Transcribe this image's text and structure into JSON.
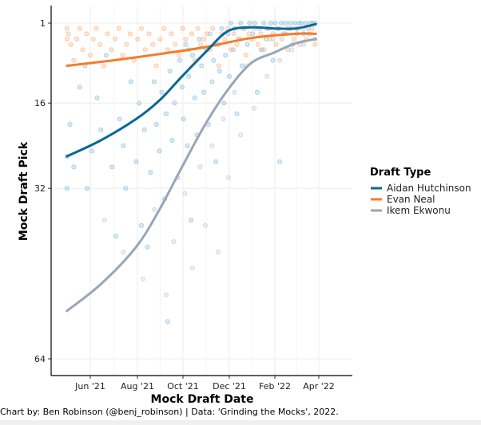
{
  "chart_data": {
    "type": "scatter",
    "xlabel": "Mock Draft Date",
    "ylabel": "Mock Draft Pick",
    "x_ticks": [
      "Jun '21",
      "Aug '21",
      "Oct '21",
      "Dec '21",
      "Feb '22",
      "Apr '22"
    ],
    "y_ticks": [
      1,
      16,
      32,
      64
    ],
    "ylim": [
      1,
      64
    ],
    "y_reversed": true,
    "grid": true,
    "legend": {
      "title": "Draft Type",
      "placement": "right",
      "entries": [
        {
          "name": "Aidan Hutchinson",
          "color": "#0b6799"
        },
        {
          "name": "Evan Neal",
          "color": "#f47c2c"
        },
        {
          "name": "Ikem Ekwonu",
          "color": "#9aa5b8"
        }
      ]
    },
    "series": [
      {
        "name": "Aidan Hutchinson",
        "color": "#0b6799",
        "point_color": "#8ec1de",
        "trend": [
          {
            "x": "2021-05-01",
            "y": 26.0
          },
          {
            "x": "2021-06-15",
            "y": 23.0
          },
          {
            "x": "2021-08-01",
            "y": 19.0
          },
          {
            "x": "2021-09-01",
            "y": 15.5
          },
          {
            "x": "2021-10-01",
            "y": 11.0
          },
          {
            "x": "2021-11-01",
            "y": 6.5
          },
          {
            "x": "2021-12-01",
            "y": 2.5
          },
          {
            "x": "2022-01-01",
            "y": 1.8
          },
          {
            "x": "2022-02-01",
            "y": 2.0
          },
          {
            "x": "2022-03-01",
            "y": 2.0
          },
          {
            "x": "2022-03-28",
            "y": 1.2
          }
        ],
        "points": [
          {
            "x": "2021-05-01",
            "y": 26
          },
          {
            "x": "2021-05-01",
            "y": 32
          },
          {
            "x": "2021-05-05",
            "y": 20
          },
          {
            "x": "2021-05-10",
            "y": 28
          },
          {
            "x": "2021-05-18",
            "y": 13
          },
          {
            "x": "2021-05-25",
            "y": 9
          },
          {
            "x": "2021-05-28",
            "y": 32
          },
          {
            "x": "2021-06-03",
            "y": 25
          },
          {
            "x": "2021-06-10",
            "y": 15
          },
          {
            "x": "2021-06-15",
            "y": 21
          },
          {
            "x": "2021-06-22",
            "y": 7
          },
          {
            "x": "2021-06-30",
            "y": 28
          },
          {
            "x": "2021-07-05",
            "y": 41
          },
          {
            "x": "2021-07-10",
            "y": 19
          },
          {
            "x": "2021-07-15",
            "y": 24
          },
          {
            "x": "2021-07-18",
            "y": 32
          },
          {
            "x": "2021-07-25",
            "y": 12
          },
          {
            "x": "2021-08-01",
            "y": 27
          },
          {
            "x": "2021-08-05",
            "y": 16
          },
          {
            "x": "2021-08-08",
            "y": 39
          },
          {
            "x": "2021-08-12",
            "y": 21
          },
          {
            "x": "2021-08-16",
            "y": 43
          },
          {
            "x": "2021-08-20",
            "y": 29
          },
          {
            "x": "2021-08-25",
            "y": 12
          },
          {
            "x": "2021-08-28",
            "y": 20
          },
          {
            "x": "2021-09-01",
            "y": 25
          },
          {
            "x": "2021-09-04",
            "y": 14
          },
          {
            "x": "2021-09-08",
            "y": 34
          },
          {
            "x": "2021-09-10",
            "y": 18
          },
          {
            "x": "2021-09-12",
            "y": 57
          },
          {
            "x": "2021-09-15",
            "y": 10
          },
          {
            "x": "2021-09-18",
            "y": 23
          },
          {
            "x": "2021-09-21",
            "y": 16
          },
          {
            "x": "2021-09-25",
            "y": 30
          },
          {
            "x": "2021-09-28",
            "y": 8
          },
          {
            "x": "2021-10-01",
            "y": 13
          },
          {
            "x": "2021-10-03",
            "y": 19
          },
          {
            "x": "2021-10-06",
            "y": 5
          },
          {
            "x": "2021-10-08",
            "y": 24
          },
          {
            "x": "2021-10-10",
            "y": 11
          },
          {
            "x": "2021-10-13",
            "y": 38
          },
          {
            "x": "2021-10-15",
            "y": 7
          },
          {
            "x": "2021-10-18",
            "y": 15
          },
          {
            "x": "2021-10-21",
            "y": 22
          },
          {
            "x": "2021-10-24",
            "y": 4
          },
          {
            "x": "2021-10-27",
            "y": 9
          },
          {
            "x": "2021-10-30",
            "y": 14
          },
          {
            "x": "2021-11-02",
            "y": 6
          },
          {
            "x": "2021-11-05",
            "y": 20
          },
          {
            "x": "2021-11-07",
            "y": 3
          },
          {
            "x": "2021-11-10",
            "y": 12
          },
          {
            "x": "2021-11-12",
            "y": 8
          },
          {
            "x": "2021-11-15",
            "y": 27
          },
          {
            "x": "2021-11-18",
            "y": 5
          },
          {
            "x": "2021-11-20",
            "y": 10
          },
          {
            "x": "2021-11-23",
            "y": 2
          },
          {
            "x": "2021-11-26",
            "y": 16
          },
          {
            "x": "2021-11-28",
            "y": 7
          },
          {
            "x": "2021-12-01",
            "y": 3
          },
          {
            "x": "2021-12-03",
            "y": 11
          },
          {
            "x": "2021-12-05",
            "y": 1
          },
          {
            "x": "2021-12-08",
            "y": 6
          },
          {
            "x": "2021-12-10",
            "y": 2
          },
          {
            "x": "2021-12-13",
            "y": 18
          },
          {
            "x": "2021-12-15",
            "y": 4
          },
          {
            "x": "2021-12-18",
            "y": 1
          },
          {
            "x": "2021-12-20",
            "y": 9
          },
          {
            "x": "2021-12-23",
            "y": 2
          },
          {
            "x": "2021-12-27",
            "y": 5
          },
          {
            "x": "2021-12-30",
            "y": 1
          },
          {
            "x": "2022-01-03",
            "y": 3
          },
          {
            "x": "2022-01-06",
            "y": 1
          },
          {
            "x": "2022-01-09",
            "y": 14
          },
          {
            "x": "2022-01-12",
            "y": 2
          },
          {
            "x": "2022-01-15",
            "y": 6
          },
          {
            "x": "2022-01-18",
            "y": 1
          },
          {
            "x": "2022-01-21",
            "y": 4
          },
          {
            "x": "2022-01-24",
            "y": 2
          },
          {
            "x": "2022-01-27",
            "y": 1
          },
          {
            "x": "2022-01-30",
            "y": 8
          },
          {
            "x": "2022-02-02",
            "y": 1
          },
          {
            "x": "2022-02-05",
            "y": 2
          },
          {
            "x": "2022-02-08",
            "y": 27
          },
          {
            "x": "2022-02-10",
            "y": 1
          },
          {
            "x": "2022-02-13",
            "y": 3
          },
          {
            "x": "2022-02-16",
            "y": 1
          },
          {
            "x": "2022-02-19",
            "y": 2
          },
          {
            "x": "2022-02-22",
            "y": 1
          },
          {
            "x": "2022-02-25",
            "y": 5
          },
          {
            "x": "2022-02-28",
            "y": 1
          },
          {
            "x": "2022-03-03",
            "y": 2
          },
          {
            "x": "2022-03-06",
            "y": 1
          },
          {
            "x": "2022-03-09",
            "y": 1
          },
          {
            "x": "2022-03-12",
            "y": 3
          },
          {
            "x": "2022-03-15",
            "y": 1
          },
          {
            "x": "2022-03-18",
            "y": 2
          },
          {
            "x": "2022-03-21",
            "y": 1
          },
          {
            "x": "2022-03-24",
            "y": 1
          },
          {
            "x": "2022-03-27",
            "y": 1
          }
        ]
      },
      {
        "name": "Evan Neal",
        "color": "#f47c2c",
        "point_color": "#f8b98a",
        "trend": [
          {
            "x": "2021-05-01",
            "y": 9.0
          },
          {
            "x": "2021-07-01",
            "y": 8.0
          },
          {
            "x": "2021-09-01",
            "y": 6.8
          },
          {
            "x": "2021-11-01",
            "y": 5.5
          },
          {
            "x": "2022-01-01",
            "y": 3.8
          },
          {
            "x": "2022-03-01",
            "y": 3.0
          },
          {
            "x": "2022-03-28",
            "y": 3.0
          }
        ],
        "points": [
          {
            "x": "2021-05-01",
            "y": 2
          },
          {
            "x": "2021-05-01",
            "y": 4
          },
          {
            "x": "2021-05-03",
            "y": 3
          },
          {
            "x": "2021-05-06",
            "y": 5
          },
          {
            "x": "2021-05-10",
            "y": 8
          },
          {
            "x": "2021-05-14",
            "y": 4
          },
          {
            "x": "2021-05-18",
            "y": 2
          },
          {
            "x": "2021-05-22",
            "y": 6
          },
          {
            "x": "2021-05-27",
            "y": 3
          },
          {
            "x": "2021-06-01",
            "y": 7
          },
          {
            "x": "2021-06-05",
            "y": 4
          },
          {
            "x": "2021-06-09",
            "y": 2
          },
          {
            "x": "2021-06-14",
            "y": 5
          },
          {
            "x": "2021-06-19",
            "y": 9
          },
          {
            "x": "2021-06-24",
            "y": 3
          },
          {
            "x": "2021-06-29",
            "y": 6
          },
          {
            "x": "2021-07-04",
            "y": 4
          },
          {
            "x": "2021-07-09",
            "y": 2
          },
          {
            "x": "2021-07-14",
            "y": 7
          },
          {
            "x": "2021-07-19",
            "y": 5
          },
          {
            "x": "2021-07-24",
            "y": 3
          },
          {
            "x": "2021-07-29",
            "y": 8
          },
          {
            "x": "2021-08-03",
            "y": 4
          },
          {
            "x": "2021-08-08",
            "y": 2
          },
          {
            "x": "2021-08-13",
            "y": 6
          },
          {
            "x": "2021-08-18",
            "y": 3
          },
          {
            "x": "2021-08-23",
            "y": 5
          },
          {
            "x": "2021-08-28",
            "y": 9
          },
          {
            "x": "2021-09-02",
            "y": 4
          },
          {
            "x": "2021-09-07",
            "y": 2
          },
          {
            "x": "2021-09-12",
            "y": 6
          },
          {
            "x": "2021-09-17",
            "y": 3
          },
          {
            "x": "2021-09-22",
            "y": 5
          },
          {
            "x": "2021-09-27",
            "y": 7
          },
          {
            "x": "2021-10-02",
            "y": 2
          },
          {
            "x": "2021-10-06",
            "y": 4
          },
          {
            "x": "2021-10-10",
            "y": 6
          },
          {
            "x": "2021-10-14",
            "y": 3
          },
          {
            "x": "2021-10-18",
            "y": 8
          },
          {
            "x": "2021-10-22",
            "y": 2
          },
          {
            "x": "2021-10-26",
            "y": 5
          },
          {
            "x": "2021-10-30",
            "y": 4
          },
          {
            "x": "2021-11-03",
            "y": 3
          },
          {
            "x": "2021-11-07",
            "y": 6
          },
          {
            "x": "2021-11-11",
            "y": 2
          },
          {
            "x": "2021-11-15",
            "y": 5
          },
          {
            "x": "2021-11-19",
            "y": 9
          },
          {
            "x": "2021-11-23",
            "y": 3
          },
          {
            "x": "2021-11-27",
            "y": 4
          },
          {
            "x": "2021-12-01",
            "y": 2
          },
          {
            "x": "2021-12-05",
            "y": 6
          },
          {
            "x": "2021-12-09",
            "y": 3
          },
          {
            "x": "2021-12-13",
            "y": 5
          },
          {
            "x": "2021-12-17",
            "y": 4
          },
          {
            "x": "2021-12-21",
            "y": 2
          },
          {
            "x": "2021-12-25",
            "y": 7
          },
          {
            "x": "2021-12-29",
            "y": 3
          },
          {
            "x": "2022-01-02",
            "y": 4
          },
          {
            "x": "2022-01-06",
            "y": 2
          },
          {
            "x": "2022-01-10",
            "y": 5
          },
          {
            "x": "2022-01-14",
            "y": 3
          },
          {
            "x": "2022-01-18",
            "y": 6
          },
          {
            "x": "2022-01-22",
            "y": 2
          },
          {
            "x": "2022-01-26",
            "y": 4
          },
          {
            "x": "2022-01-30",
            "y": 3
          },
          {
            "x": "2022-02-03",
            "y": 5
          },
          {
            "x": "2022-02-07",
            "y": 2
          },
          {
            "x": "2022-02-11",
            "y": 4
          },
          {
            "x": "2022-02-15",
            "y": 3
          },
          {
            "x": "2022-02-19",
            "y": 6
          },
          {
            "x": "2022-02-23",
            "y": 2
          },
          {
            "x": "2022-02-27",
            "y": 4
          },
          {
            "x": "2022-03-03",
            "y": 3
          },
          {
            "x": "2022-03-07",
            "y": 5
          },
          {
            "x": "2022-03-11",
            "y": 2
          },
          {
            "x": "2022-03-15",
            "y": 4
          },
          {
            "x": "2022-03-19",
            "y": 3
          },
          {
            "x": "2022-03-23",
            "y": 2
          },
          {
            "x": "2022-03-27",
            "y": 5
          }
        ]
      },
      {
        "name": "Ikem Ekwonu",
        "color": "#9aa5b8",
        "point_color": "#c7cdd8",
        "trend": [
          {
            "x": "2021-05-01",
            "y": 55.0
          },
          {
            "x": "2021-06-15",
            "y": 50.0
          },
          {
            "x": "2021-08-01",
            "y": 43.0
          },
          {
            "x": "2021-09-01",
            "y": 36.0
          },
          {
            "x": "2021-10-01",
            "y": 28.0
          },
          {
            "x": "2021-11-01",
            "y": 20.0
          },
          {
            "x": "2021-12-01",
            "y": 13.5
          },
          {
            "x": "2022-01-01",
            "y": 8.5
          },
          {
            "x": "2022-02-01",
            "y": 6.5
          },
          {
            "x": "2022-03-01",
            "y": 4.8
          },
          {
            "x": "2022-03-28",
            "y": 4.0
          }
        ],
        "points": [
          {
            "x": "2021-06-20",
            "y": 38
          },
          {
            "x": "2021-07-15",
            "y": 44
          },
          {
            "x": "2021-08-10",
            "y": 49
          },
          {
            "x": "2021-08-25",
            "y": 36
          },
          {
            "x": "2021-09-10",
            "y": 52
          },
          {
            "x": "2021-09-20",
            "y": 42
          },
          {
            "x": "2021-10-05",
            "y": 33
          },
          {
            "x": "2021-10-15",
            "y": 47
          },
          {
            "x": "2021-10-25",
            "y": 28
          },
          {
            "x": "2021-11-01",
            "y": 39
          },
          {
            "x": "2021-11-10",
            "y": 24
          },
          {
            "x": "2021-11-18",
            "y": 44
          },
          {
            "x": "2021-11-25",
            "y": 19
          },
          {
            "x": "2021-12-02",
            "y": 30
          },
          {
            "x": "2021-12-10",
            "y": 14
          },
          {
            "x": "2021-12-18",
            "y": 22
          },
          {
            "x": "2021-12-26",
            "y": 9
          },
          {
            "x": "2022-01-05",
            "y": 17
          },
          {
            "x": "2022-01-14",
            "y": 6
          },
          {
            "x": "2022-01-22",
            "y": 11
          },
          {
            "x": "2022-01-30",
            "y": 4
          },
          {
            "x": "2022-02-08",
            "y": 8
          },
          {
            "x": "2022-02-16",
            "y": 3
          },
          {
            "x": "2022-02-24",
            "y": 6
          },
          {
            "x": "2022-03-04",
            "y": 2
          },
          {
            "x": "2022-03-12",
            "y": 5
          },
          {
            "x": "2022-03-20",
            "y": 3
          },
          {
            "x": "2022-03-27",
            "y": 4
          }
        ]
      }
    ],
    "caption": "Chart by: Ben Robinson (@benj_robinson) | Data: 'Grinding the Mocks', 2022."
  }
}
